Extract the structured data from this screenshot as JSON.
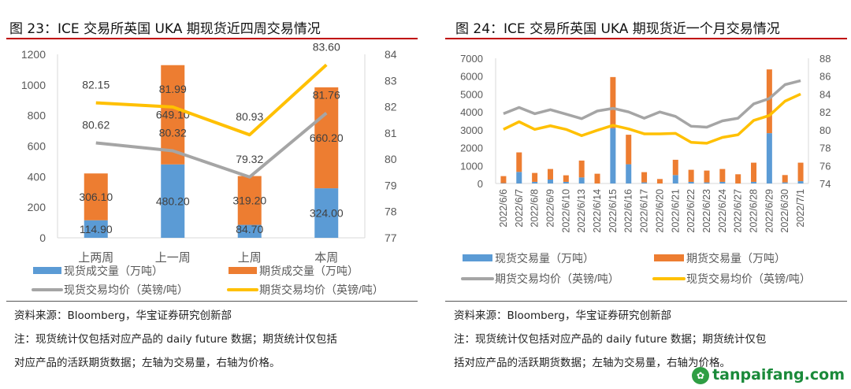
{
  "left": {
    "title": "图 23：ICE 交易所英国 UKA 期现货近四周交易情况",
    "source": "资料来源：Bloomberg，华宝证券研究创新部",
    "note_line1": "注：现货统计仅包括对应产品的 daily  future 数据；期货统计仅包括",
    "note_line2": "对应产品的活跃期货数据；左轴为交易量，右轴为价格。"
  },
  "right": {
    "title": "图 24：ICE 交易所英国 UKA 期现货近一个月交易情况",
    "source": "资料来源：Bloomberg，华宝证券研究创新部",
    "note_line1": "注：现货统计仅包括对应产品的 daily  future 数据；期货统计仅包",
    "note_line2": "括对应产品的活跃期货数据；左轴为交易量，右轴为价格。"
  },
  "watermark": "tanpaifang.com",
  "chart_data": [
    {
      "type": "bar+line",
      "stacked": true,
      "categories": [
        "上两周",
        "上一周",
        "上周",
        "本周"
      ],
      "left_ylim": [
        0,
        1200
      ],
      "left_ticks": [
        "0",
        "200",
        "400",
        "600",
        "800",
        "1000",
        "1200"
      ],
      "right_ylim": [
        77,
        84
      ],
      "right_ticks": [
        "77",
        "78",
        "79",
        "80",
        "81",
        "82",
        "83",
        "84"
      ],
      "series": [
        {
          "name": "现货成交量（万吨）",
          "kind": "bar",
          "axis": "left",
          "color": "#5b9bd5",
          "values": [
            114.9,
            480.2,
            84.7,
            324.0
          ],
          "labels": [
            "114.90",
            "480.20",
            "84.70",
            "324.00"
          ]
        },
        {
          "name": "期货成交量（万吨）",
          "kind": "bar",
          "axis": "left",
          "color": "#ed7d31",
          "values": [
            306.1,
            649.1,
            319.2,
            660.2
          ],
          "labels": [
            "306.10",
            "649.10",
            "319.20",
            "660.20"
          ]
        },
        {
          "name": "现货交易均价（英镑/吨）",
          "kind": "line",
          "axis": "right",
          "color": "#a5a5a5",
          "values": [
            80.62,
            80.32,
            79.32,
            81.76
          ],
          "labels": [
            "80.62",
            "80.32",
            "79.32",
            "81.76"
          ]
        },
        {
          "name": "期货交易均价（英镑/吨）",
          "kind": "line",
          "axis": "right",
          "color": "#ffc000",
          "values": [
            82.15,
            81.99,
            80.93,
            83.6
          ],
          "labels": [
            "82.15",
            "81.99",
            "80.93",
            "83.60"
          ]
        }
      ],
      "legend": "bottom",
      "grid": false
    },
    {
      "type": "bar+line",
      "stacked": true,
      "categories": [
        "2022/6/6",
        "2022/6/7",
        "2022/6/8",
        "2022/6/9",
        "2022/6/10",
        "2022/6/13",
        "2022/6/14",
        "2022/6/15",
        "2022/6/16",
        "2022/6/17",
        "2022/6/20",
        "2022/6/21",
        "2022/6/22",
        "2022/6/23",
        "2022/6/24",
        "2022/6/27",
        "2022/6/28",
        "2022/6/29",
        "2022/6/30",
        "2022/7/1"
      ],
      "left_ylim": [
        0,
        7000
      ],
      "left_ticks": [
        "0",
        "1000",
        "2000",
        "3000",
        "4000",
        "5000",
        "6000",
        "7000"
      ],
      "right_ylim": [
        74,
        88
      ],
      "right_ticks": [
        "74",
        "76",
        "78",
        "80",
        "82",
        "84",
        "86",
        "88"
      ],
      "series": [
        {
          "name": "现货交易量（万吨）",
          "kind": "bar",
          "axis": "left",
          "color": "#5b9bd5",
          "values": [
            20,
            648,
            90,
            220,
            90,
            339,
            0,
            3093,
            1075,
            60,
            0,
            471,
            90,
            60,
            90,
            0,
            90,
            2813,
            60,
            130
          ]
        },
        {
          "name": "期货交易量（万吨）",
          "kind": "bar",
          "axis": "left",
          "color": "#ed7d31",
          "values": [
            392,
            1090,
            499,
            590,
            367,
            942,
            545,
            2857,
            1650,
            573,
            250,
            854,
            676,
            662,
            720,
            515,
            1073,
            3564,
            411,
            1033
          ]
        },
        {
          "name": "期货交易均价（英镑/吨）",
          "kind": "line",
          "axis": "right",
          "color": "#a5a5a5",
          "values": [
            81.8,
            82.5,
            81.8,
            82.25,
            81.75,
            81.25,
            82.1,
            82.4,
            82.0,
            81.3,
            82.0,
            81.5,
            80.4,
            80.3,
            81.0,
            81.3,
            82.9,
            83.5,
            85.05,
            85.5
          ]
        },
        {
          "name": "现货交易均价（英镑/吨）",
          "kind": "line",
          "axis": "right",
          "color": "#ffc000",
          "values": [
            80.05,
            80.9,
            80.05,
            80.45,
            80.05,
            79.35,
            79.95,
            80.5,
            80.1,
            79.55,
            79.55,
            79.6,
            78.6,
            78.5,
            79.15,
            79.45,
            81.05,
            81.6,
            83.2,
            84.0
          ]
        }
      ],
      "legend": "bottom",
      "grid": false
    }
  ]
}
